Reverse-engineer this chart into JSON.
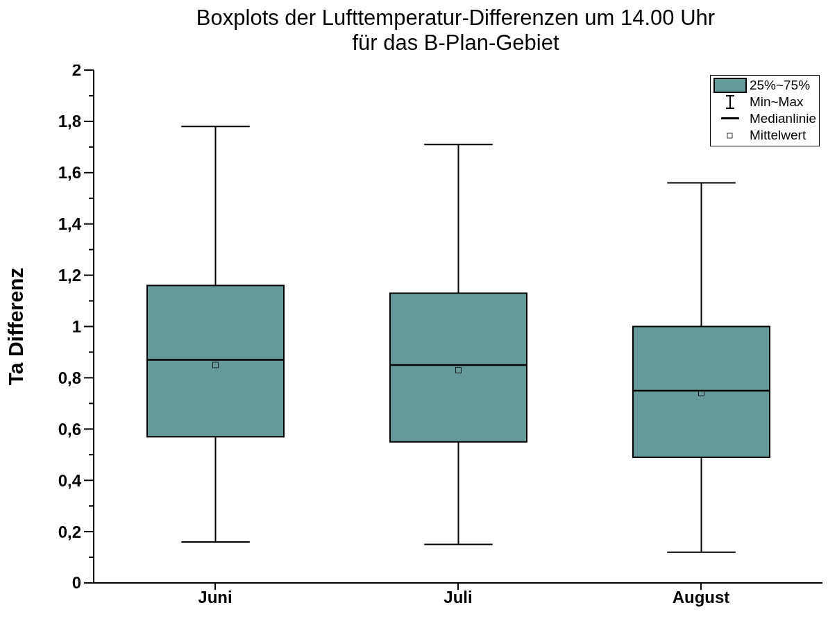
{
  "chart_data": {
    "type": "box",
    "title": "Boxplots der Lufttemperatur-Differenzen um 14.00 Uhr\nfür das B-Plan-Gebiet",
    "ylabel": "Ta Differenz",
    "categories": [
      "Juni",
      "Juli",
      "August"
    ],
    "series": [
      {
        "name": "25%~75%",
        "color": "#669999",
        "boxes": [
          {
            "low": 0.16,
            "q1": 0.57,
            "median": 0.87,
            "q3": 1.16,
            "high": 1.78,
            "mean": 0.85
          },
          {
            "low": 0.15,
            "q1": 0.55,
            "median": 0.85,
            "q3": 1.13,
            "high": 1.71,
            "mean": 0.83
          },
          {
            "low": 0.12,
            "q1": 0.49,
            "median": 0.75,
            "q3": 1.0,
            "high": 1.56,
            "mean": 0.74
          }
        ]
      }
    ],
    "annotations": [
      "Min~Max",
      "Medianlinie",
      "Mittelwert"
    ],
    "ylim": [
      0,
      2
    ],
    "yticks": [
      0,
      {
        "value": 0.1,
        "label": null
      },
      {
        "value": 0.2,
        "label": "0,2"
      },
      {
        "value": 0.3,
        "label": null
      },
      {
        "value": 0.4,
        "label": "0,4"
      },
      {
        "value": 0.5,
        "label": null
      },
      {
        "value": 0.6,
        "label": "0,6"
      },
      {
        "value": 0.7,
        "label": null
      },
      {
        "value": 0.8,
        "label": "0,8"
      },
      {
        "value": 0.9,
        "label": null
      },
      1,
      {
        "value": 1.1,
        "label": null
      },
      {
        "value": 1.2,
        "label": "1,2"
      },
      {
        "value": 1.3,
        "label": null
      },
      {
        "value": 1.4,
        "label": "1,4"
      },
      {
        "value": 1.5,
        "label": null
      },
      {
        "value": 1.6,
        "label": "1,6"
      },
      {
        "value": 1.7,
        "label": null
      },
      {
        "value": 1.8,
        "label": "1,8"
      },
      {
        "value": 1.9,
        "label": null
      },
      2
    ],
    "legend": "top right",
    "marker": "square"
  }
}
